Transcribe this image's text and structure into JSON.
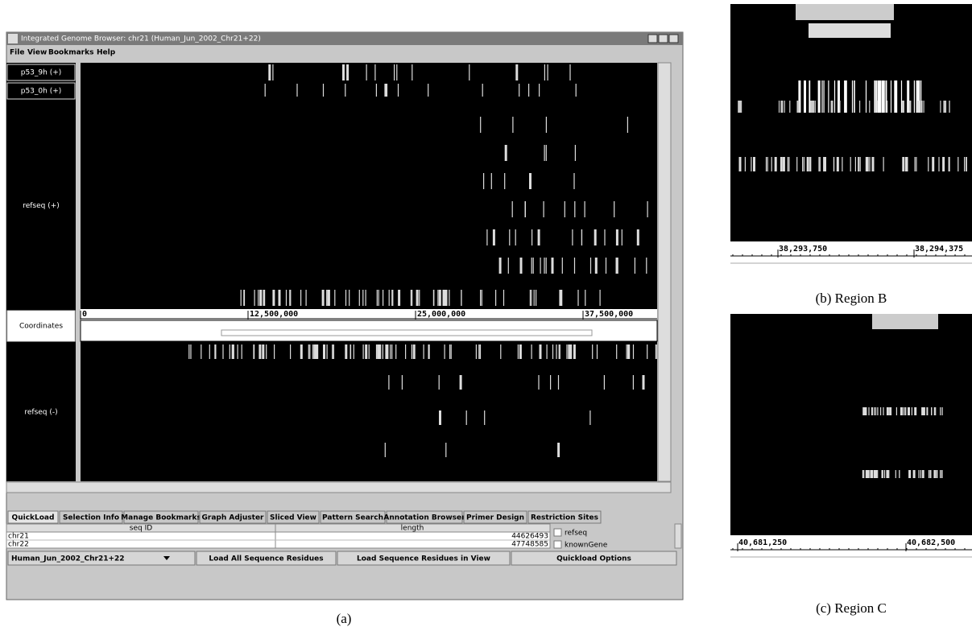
{
  "panel_a": {
    "window_title": "Integrated Genome Browser:     chr21  (Human_Jun_2002_Chr21+22)",
    "menu": [
      "File",
      "View",
      "Bookmarks",
      "Help"
    ],
    "track_labels": [
      "p53_9h (+)",
      "p53_0h (+)",
      "refseq (+)",
      "Coordinates",
      "refseq (-)"
    ],
    "coordinate_ticks": [
      "0",
      "12,500,000",
      "25,000,000",
      "37,500,000"
    ],
    "tabs": [
      "QuickLoad",
      "Selection Info",
      "Manage Bookmarks",
      "Graph Adjuster",
      "Sliced View",
      "Pattern Search",
      "Annotation Browser",
      "Primer Design",
      "Restriction Sites"
    ],
    "table": {
      "headers": [
        "seq ID",
        "length"
      ],
      "rows": [
        [
          "chr21",
          44626493
        ],
        [
          "chr22",
          47748585
        ]
      ]
    },
    "checkboxes": [
      "refseq",
      "knownGene"
    ],
    "buttons": [
      "Human_Jun_2002_Chr21+22",
      "Load All Sequence Residues",
      "Load Sequence Residues in View",
      "Quickload Options"
    ],
    "caption": "(a)"
  },
  "panel_b": {
    "ticks": [
      "38,293,750",
      "38,294,375"
    ],
    "caption": "(b) Region B"
  },
  "panel_c": {
    "ticks": [
      "40,681,250",
      "40,682,500"
    ],
    "caption": "(c) Region C"
  }
}
